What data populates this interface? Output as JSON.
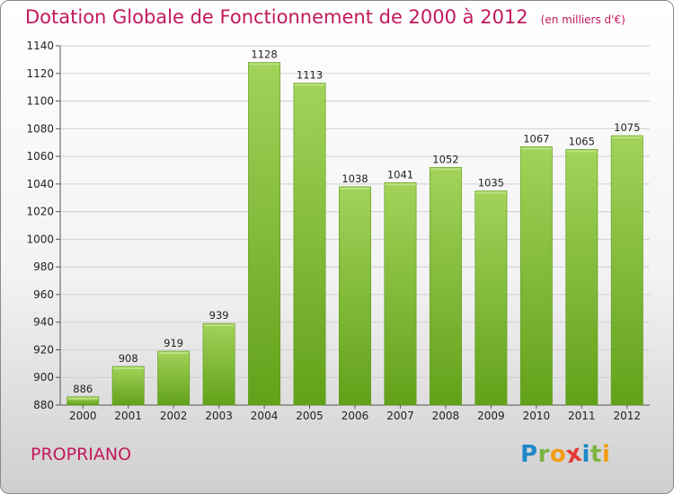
{
  "header": {
    "title": "Dotation Globale de Fonctionnement de 2000 à 2012",
    "subtitle": "(en milliers d'€)"
  },
  "footer": {
    "commune": "PROPRIANO",
    "logo_text": "Proxiti",
    "logo_letters": [
      {
        "ch": "P",
        "color": "#1e88c9"
      },
      {
        "ch": "r",
        "color": "#7cb342"
      },
      {
        "ch": "o",
        "color": "#f39c12"
      },
      {
        "ch": "x",
        "color": "#e53935"
      },
      {
        "ch": "i",
        "color": "#1e88c9"
      },
      {
        "ch": "t",
        "color": "#7cb342"
      },
      {
        "ch": "i",
        "color": "#f39c12"
      }
    ]
  },
  "colors": {
    "bar_light": "#a2d35a",
    "bar_dark": "#62a11a",
    "title": "#c2185b",
    "grid": "#d0d0d0"
  },
  "chart_data": {
    "type": "bar",
    "categories": [
      "2000",
      "2001",
      "2002",
      "2003",
      "2004",
      "2005",
      "2006",
      "2007",
      "2008",
      "2009",
      "2010",
      "2011",
      "2012"
    ],
    "values": [
      886,
      908,
      919,
      939,
      1128,
      1113,
      1038,
      1041,
      1052,
      1035,
      1067,
      1065,
      1075
    ],
    "ylim": [
      880,
      1140
    ],
    "yticks": [
      880,
      900,
      920,
      940,
      960,
      980,
      1000,
      1020,
      1040,
      1060,
      1080,
      1100,
      1120,
      1140
    ],
    "grid": true,
    "legend": "none"
  }
}
